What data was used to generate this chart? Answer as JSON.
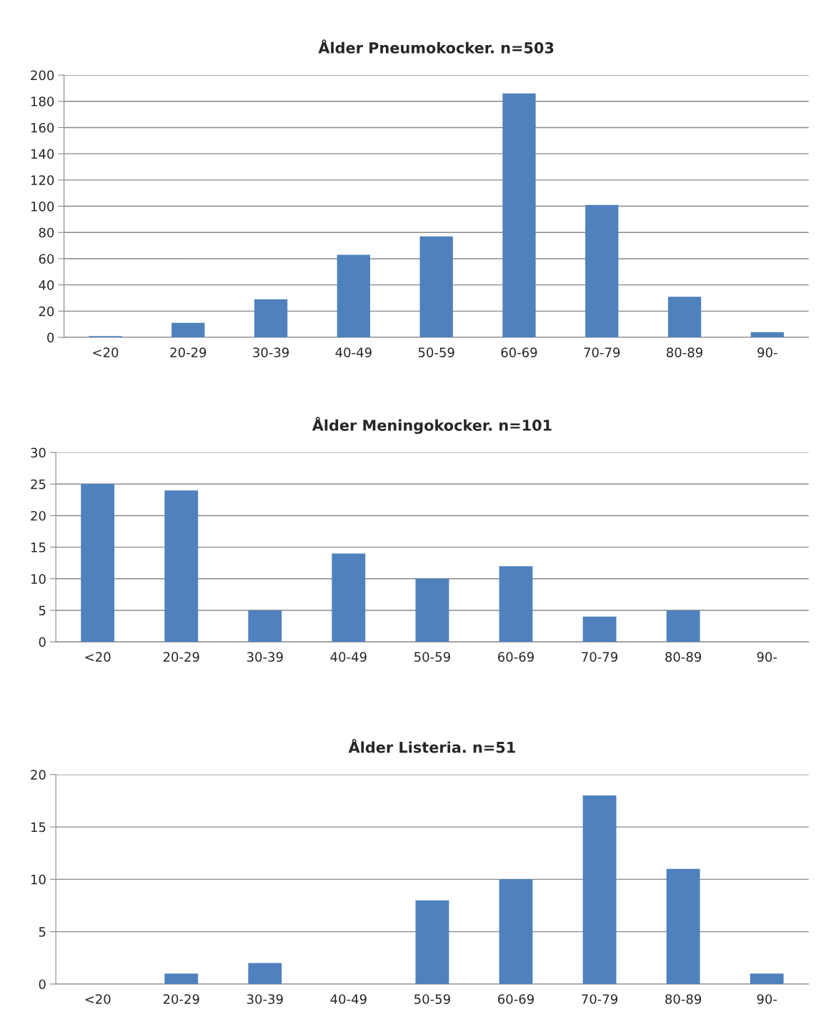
{
  "chart_data": [
    {
      "type": "bar",
      "title": "Ålder Pneumokocker. n=503",
      "categories": [
        "<20",
        "20-29",
        "30-39",
        "40-49",
        "50-59",
        "60-69",
        "70-79",
        "80-89",
        "90-"
      ],
      "values": [
        1,
        11,
        29,
        63,
        77,
        186,
        101,
        31,
        4
      ],
      "color": "#4f81bd",
      "ylim": [
        0,
        200
      ],
      "yticks": [
        0,
        20,
        40,
        60,
        80,
        100,
        120,
        140,
        160,
        180,
        200
      ],
      "grid": "y",
      "legend": false
    },
    {
      "type": "bar",
      "title": "Ålder Meningokocker. n=101",
      "categories": [
        "<20",
        "20-29",
        "30-39",
        "40-49",
        "50-59",
        "60-69",
        "70-79",
        "80-89",
        "90-"
      ],
      "values": [
        25,
        24,
        5,
        14,
        10,
        12,
        4,
        5,
        0
      ],
      "color": "#4f81bd",
      "ylim": [
        0,
        30
      ],
      "yticks": [
        0,
        5,
        10,
        15,
        20,
        25,
        30
      ],
      "grid": "y",
      "legend": false
    },
    {
      "type": "bar",
      "title": "Ålder Listeria. n=51",
      "categories": [
        "<20",
        "20-29",
        "30-39",
        "40-49",
        "50-59",
        "60-69",
        "70-79",
        "80-89",
        "90-"
      ],
      "values": [
        0,
        1,
        2,
        0,
        8,
        10,
        18,
        11,
        1
      ],
      "color": "#4f81bd",
      "ylim": [
        0,
        20
      ],
      "yticks": [
        0,
        5,
        10,
        15,
        20
      ],
      "grid": "y",
      "legend": false
    }
  ]
}
